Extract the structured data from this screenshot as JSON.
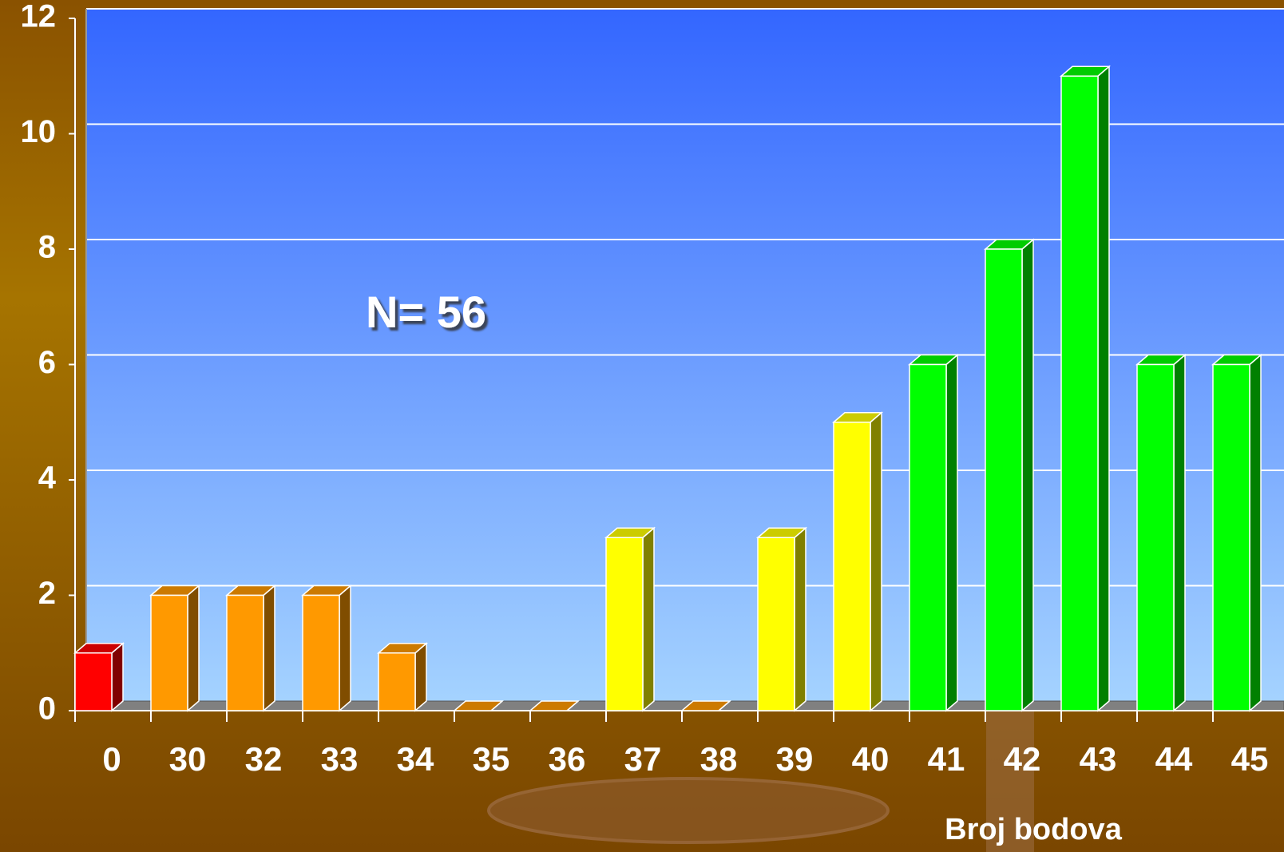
{
  "chart_data": {
    "type": "bar",
    "annotation": "N= 56",
    "x_label": "Broj bodova",
    "categories": [
      "0",
      "30",
      "32",
      "33",
      "34",
      "35",
      "36",
      "37",
      "38",
      "39",
      "40",
      "41",
      "42",
      "43",
      "44",
      "45"
    ],
    "values": [
      1,
      2,
      2,
      2,
      1,
      0,
      0,
      3,
      0,
      3,
      5,
      6,
      8,
      11,
      6,
      6
    ],
    "colors": [
      "#ff0000",
      "#ff9900",
      "#ff9900",
      "#ff9900",
      "#ff9900",
      "#ff9900",
      "#ff9900",
      "#ffff00",
      "#ff9900",
      "#ffff00",
      "#ffff00",
      "#00ff00",
      "#00ff00",
      "#00ff00",
      "#00ff00",
      "#00ff00"
    ],
    "ylim": [
      0,
      12
    ],
    "yticks": [
      0,
      2,
      4,
      6,
      8,
      10,
      12
    ],
    "grid": true
  }
}
